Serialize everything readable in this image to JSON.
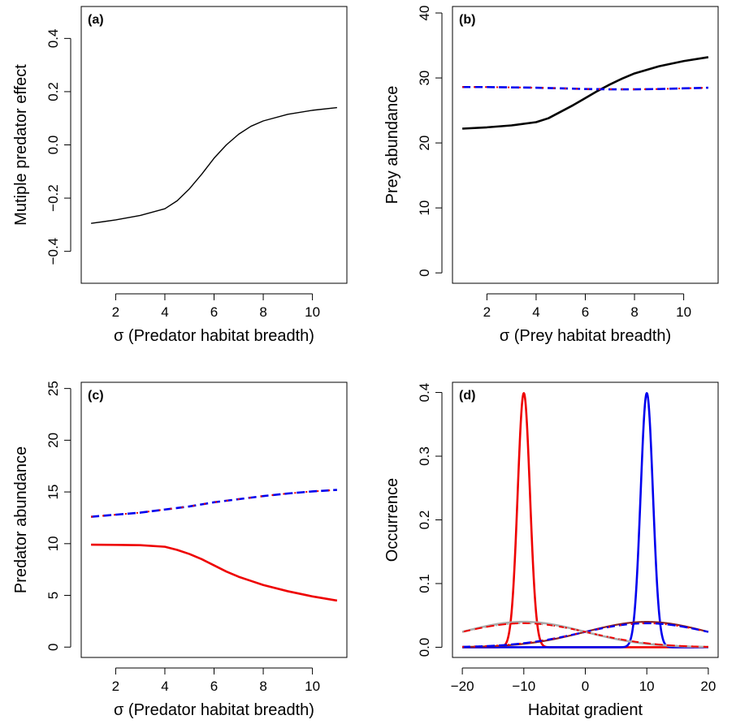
{
  "chart_data": [
    {
      "panel_label": "(a)",
      "type": "line",
      "xlabel": "σ (Predator habitat breadth)",
      "ylabel": "Mutiple predator effect",
      "xlim": [
        0.6,
        11.4
      ],
      "ylim": [
        -0.52,
        0.52
      ],
      "xticks": [
        2,
        4,
        6,
        8,
        10
      ],
      "yticks": [
        -0.4,
        -0.2,
        0.0,
        0.2,
        0.4
      ],
      "ytick_labels": [
        "−0.4",
        "−0.2",
        "0.0",
        "0.2",
        "0.4"
      ],
      "series": [
        {
          "color": "#000000",
          "width": 1.4,
          "dash": "",
          "x": [
            1,
            2,
            3,
            4,
            4.5,
            5,
            5.5,
            6,
            6.5,
            7,
            7.5,
            8,
            9,
            10,
            11
          ],
          "y": [
            -0.295,
            -0.282,
            -0.265,
            -0.24,
            -0.21,
            -0.165,
            -0.11,
            -0.05,
            0.0,
            0.04,
            0.07,
            0.09,
            0.115,
            0.13,
            0.14
          ]
        }
      ]
    },
    {
      "panel_label": "(b)",
      "type": "line",
      "xlabel": "σ (Prey habitat breadth)",
      "ylabel": "Prey abundance",
      "xlim": [
        0.6,
        11.4
      ],
      "ylim": [
        -1.6,
        41.0
      ],
      "xticks": [
        2,
        4,
        6,
        8,
        10
      ],
      "yticks": [
        0,
        10,
        20,
        30,
        40
      ],
      "ytick_labels": [
        "0",
        "10",
        "20",
        "30",
        "40"
      ],
      "series": [
        {
          "color": "#000000",
          "width": 2.6,
          "dash": "",
          "x": [
            1,
            2,
            3,
            4,
            4.5,
            5,
            5.5,
            6,
            6.5,
            7,
            7.5,
            8,
            9,
            10,
            11
          ],
          "y": [
            22.2,
            22.4,
            22.7,
            23.2,
            23.8,
            24.8,
            25.8,
            26.9,
            28.0,
            29.0,
            29.9,
            30.7,
            31.8,
            32.6,
            33.2
          ]
        },
        {
          "color": "#0000ee",
          "width": 2.6,
          "dash": "10,5",
          "x": [
            1,
            2,
            3,
            4,
            5,
            6,
            7,
            8,
            9,
            10,
            11
          ],
          "y": [
            28.6,
            28.6,
            28.55,
            28.5,
            28.4,
            28.3,
            28.25,
            28.25,
            28.3,
            28.4,
            28.5
          ]
        },
        {
          "color": "#ee0000",
          "width": 2.0,
          "dash": "2,12",
          "x": [
            1,
            2,
            3,
            4,
            5,
            6,
            7,
            8,
            9,
            10,
            11
          ],
          "y": [
            28.6,
            28.6,
            28.55,
            28.5,
            28.4,
            28.3,
            28.25,
            28.25,
            28.3,
            28.4,
            28.5
          ]
        }
      ]
    },
    {
      "panel_label": "(c)",
      "type": "line",
      "xlabel": "σ (Predator habitat breadth)",
      "ylabel": "Predator abundance",
      "xlim": [
        0.6,
        11.4
      ],
      "ylim": [
        -1.0,
        25.6
      ],
      "xticks": [
        2,
        4,
        6,
        8,
        10
      ],
      "yticks": [
        0,
        5,
        10,
        15,
        20,
        25
      ],
      "ytick_labels": [
        "0",
        "5",
        "10",
        "15",
        "20",
        "25"
      ],
      "series": [
        {
          "color": "#ee0000",
          "width": 2.6,
          "dash": "",
          "x": [
            1,
            2,
            3,
            4,
            4.5,
            5,
            5.5,
            6,
            6.5,
            7,
            7.5,
            8,
            9,
            10,
            11
          ],
          "y": [
            9.9,
            9.88,
            9.85,
            9.7,
            9.4,
            9.0,
            8.5,
            7.9,
            7.3,
            6.8,
            6.4,
            6.0,
            5.4,
            4.9,
            4.5
          ]
        },
        {
          "color": "#0000ee",
          "width": 2.6,
          "dash": "10,5",
          "x": [
            1,
            2,
            3,
            4,
            5,
            6,
            7,
            8,
            9,
            10,
            11
          ],
          "y": [
            12.6,
            12.8,
            13.0,
            13.3,
            13.6,
            14.0,
            14.3,
            14.6,
            14.85,
            15.05,
            15.2
          ]
        },
        {
          "color": "#ee0000",
          "width": 2.0,
          "dash": "2,12",
          "x": [
            1,
            2,
            3,
            4,
            5,
            6,
            7,
            8,
            9,
            10,
            11
          ],
          "y": [
            12.6,
            12.8,
            13.0,
            13.3,
            13.6,
            14.0,
            14.3,
            14.6,
            14.85,
            15.05,
            15.2
          ]
        }
      ]
    },
    {
      "panel_label": "(d)",
      "type": "line",
      "xlabel": "Habitat gradient",
      "ylabel": "Occurrence",
      "xlim": [
        -21.6,
        21.6
      ],
      "ylim": [
        -0.016,
        0.416
      ],
      "xticks": [
        -20,
        -10,
        0,
        10,
        20
      ],
      "xtick_labels": [
        "−20",
        "−10",
        "0",
        "10",
        "20"
      ],
      "yticks": [
        0.0,
        0.1,
        0.2,
        0.3,
        0.4
      ],
      "ytick_labels": [
        "0.0",
        "0.1",
        "0.2",
        "0.3",
        "0.4"
      ],
      "curves": [
        {
          "mu": -10,
          "sigma": 1,
          "color": "#ee0000",
          "width": 2.6,
          "dash": ""
        },
        {
          "mu": 10,
          "sigma": 1,
          "color": "#0000ee",
          "width": 2.6,
          "dash": ""
        },
        {
          "mu": 10,
          "sigma": 10,
          "color": "#8b2323",
          "width": 2.2,
          "dash": ""
        },
        {
          "mu": 10,
          "sigma": 10.6,
          "color": "#0000ee",
          "width": 2.4,
          "dash": "10,5"
        },
        {
          "mu": 10,
          "sigma": 10.6,
          "color": "#ee0000",
          "width": 2.0,
          "dash": "2,12"
        },
        {
          "mu": -10,
          "sigma": 10,
          "color": "#aaaaaa",
          "width": 2.6,
          "dash": ""
        },
        {
          "mu": -10,
          "sigma": 10.6,
          "color": "#ee0000",
          "width": 2.0,
          "dash": "10,5"
        },
        {
          "mu": -10,
          "sigma": 10.6,
          "color": "#aaaaaa",
          "width": 2.0,
          "dash": "2,12"
        }
      ]
    }
  ]
}
